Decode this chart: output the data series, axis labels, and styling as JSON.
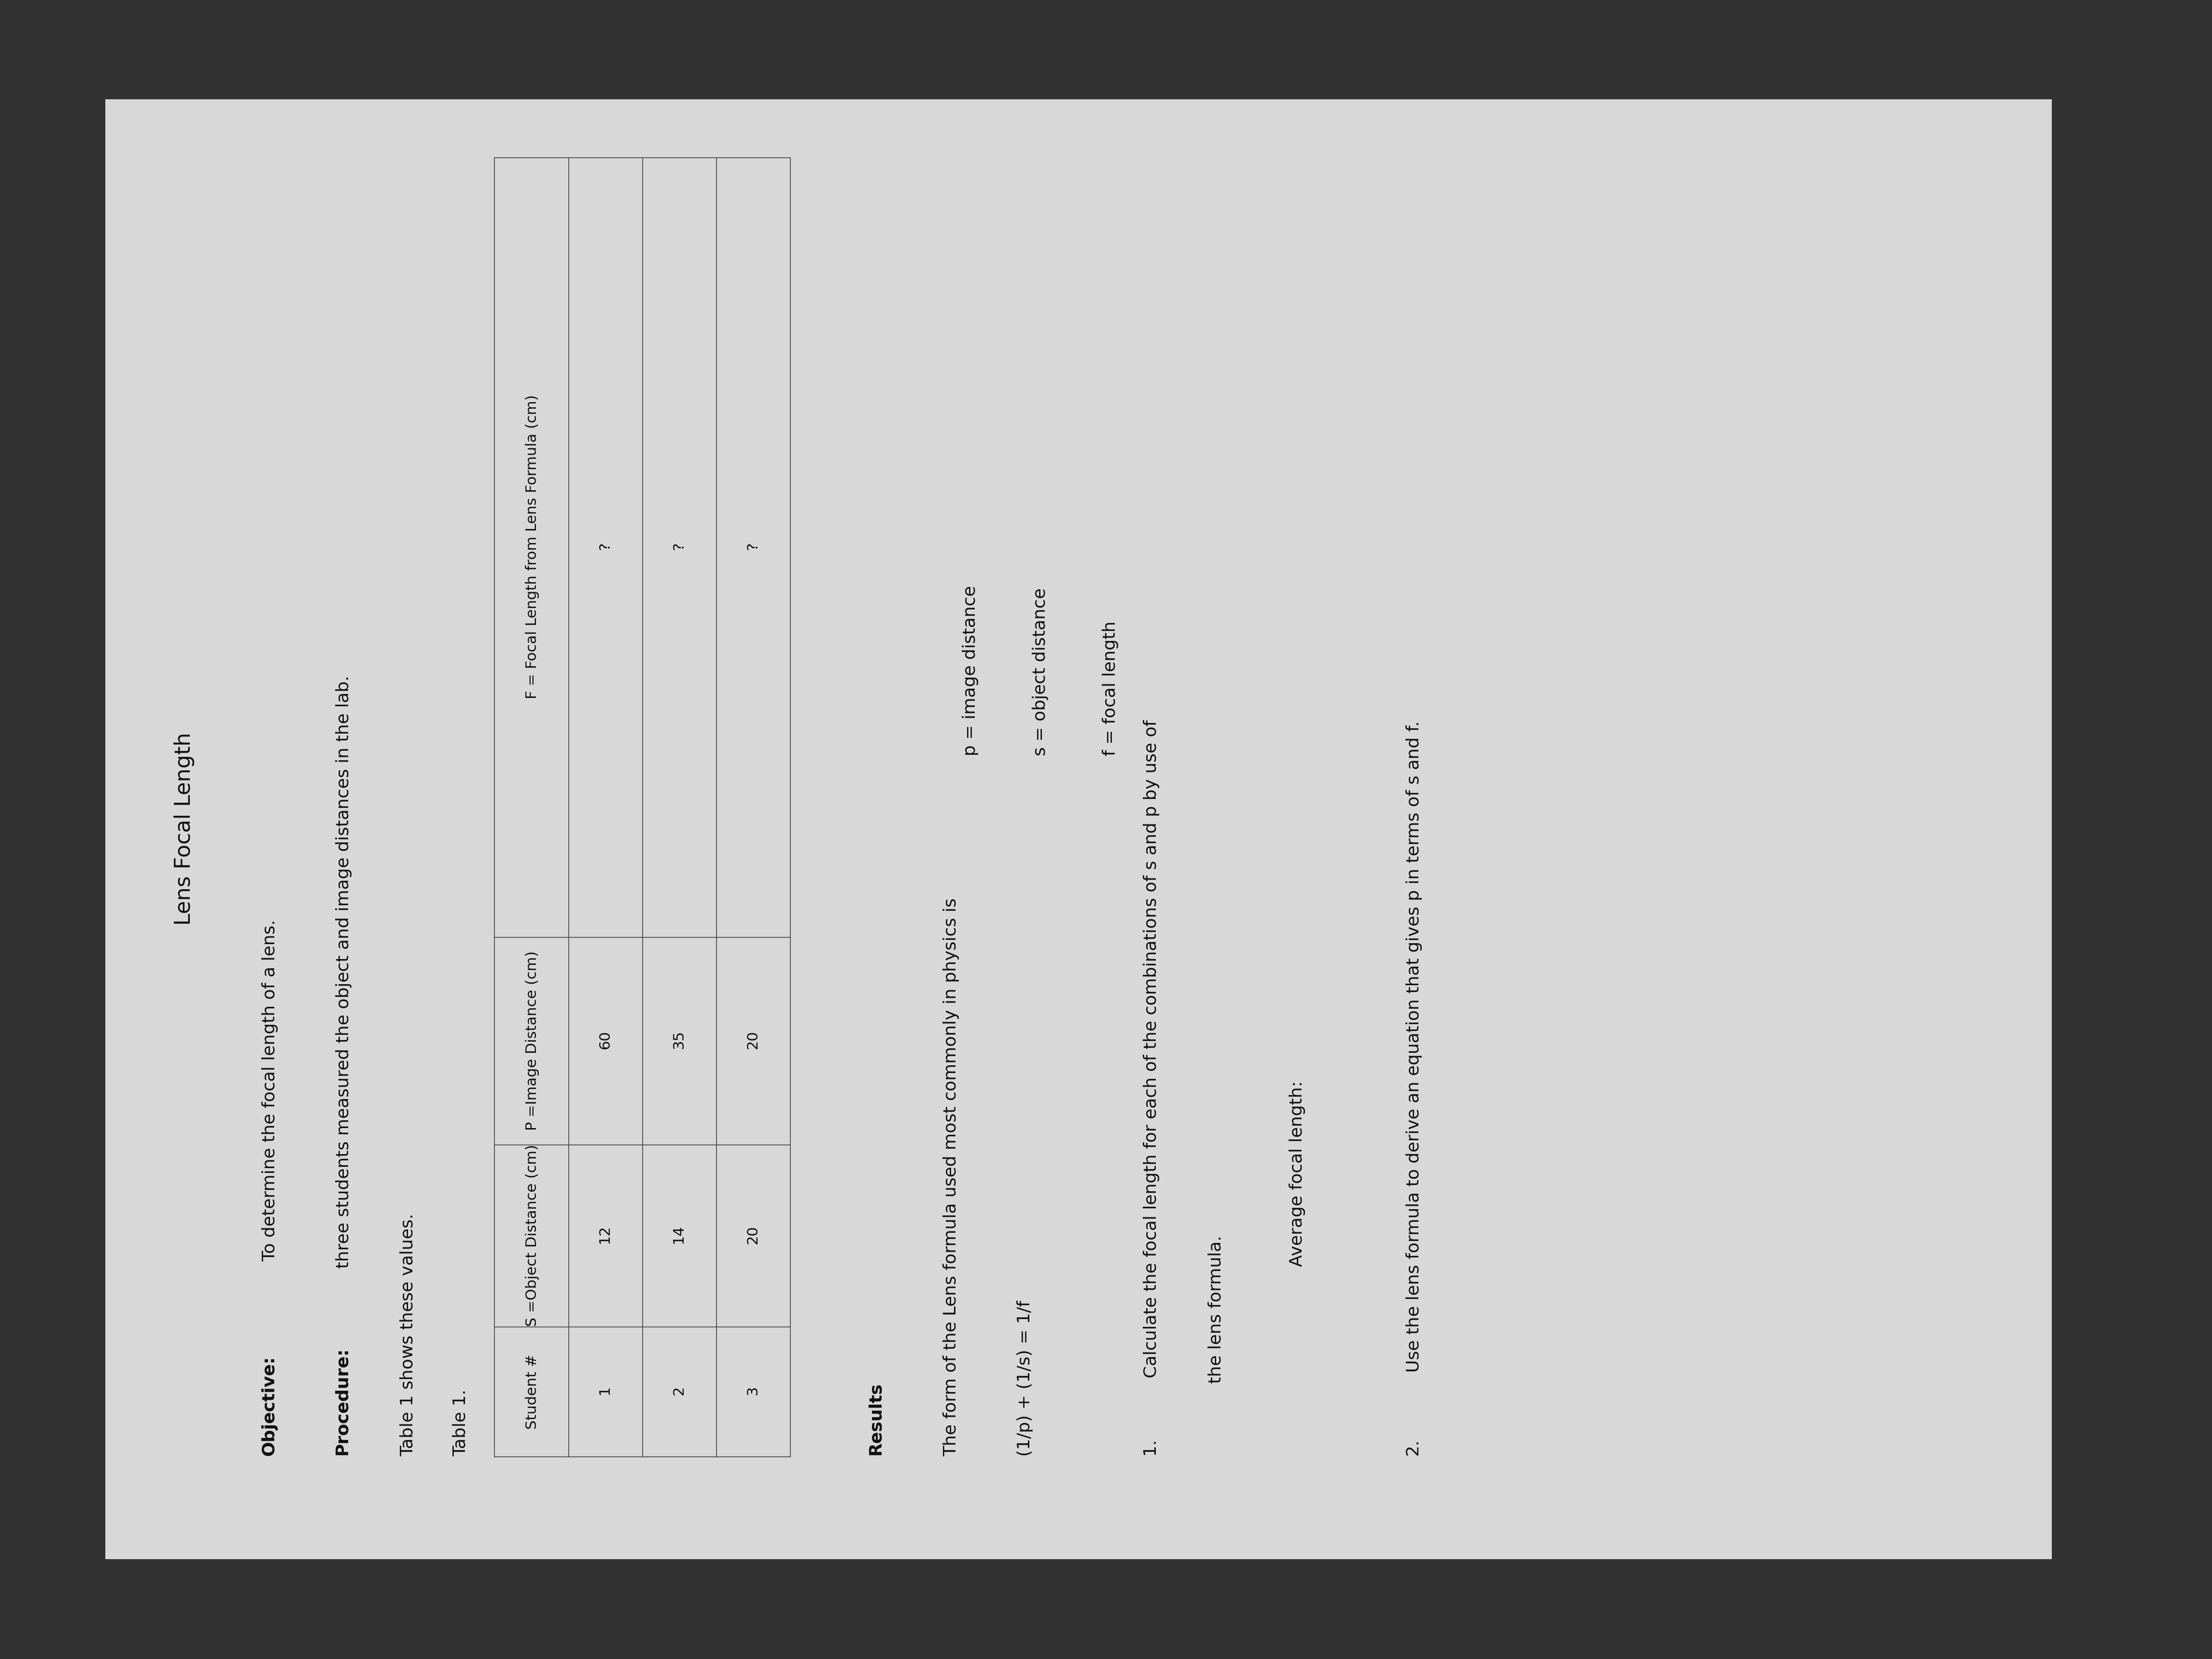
{
  "title": "Lens Focal Length",
  "objective_label": "Objective:",
  "objective_text": " To determine the focal length of a lens.",
  "procedure_label": "Procedure:",
  "procedure_text": " three students measured the object and image distances in the lab.",
  "procedure_text2": "Table 1 shows these values.",
  "table_label": "Table 1.",
  "table_headers": [
    "Student #",
    "S =Object Distance (cm)",
    "P =Image Distance (cm)",
    "F = Focal Length from Lens Formula (cm)"
  ],
  "table_rows": [
    [
      "1",
      "12",
      "60",
      "?"
    ],
    [
      "2",
      "14",
      "35",
      "?"
    ],
    [
      "3",
      "20",
      "20",
      "?"
    ]
  ],
  "results_label": "Results",
  "results_line1": "The form of the Lens formula used most commonly in physics is",
  "results_formula": "(1/p) + (1/s) = 1/f",
  "def_p": "p = image distance",
  "def_s": "s = object distance",
  "def_f": "f = focal length",
  "question1_num": "1.",
  "question1_text": " Calculate the focal length for each of the combinations of s and p by use of",
  "question1_text2": "the lens formula.",
  "question1_avg": "Average focal length:",
  "question2_num": "2.",
  "question2_text": "  Use the lens formula to derive an equation that gives p in terms of s and f.",
  "bg_outer": "#3a3a3a",
  "bg_paper": "#d8d8d8",
  "text_color": "#111111",
  "table_line_color": "#444444",
  "title_fontsize": 32,
  "body_fontsize": 26,
  "table_fontsize": 22
}
